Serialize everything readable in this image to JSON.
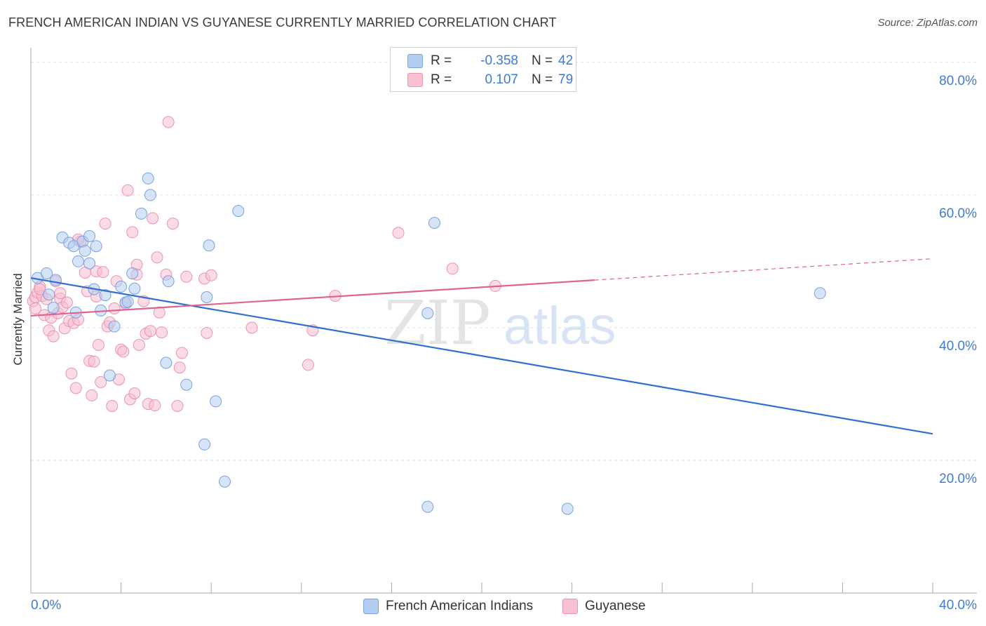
{
  "title": "FRENCH AMERICAN INDIAN VS GUYANESE CURRENTLY MARRIED CORRELATION CHART",
  "source": "Source: ZipAtlas.com",
  "watermark": {
    "zip": "ZIP",
    "atlas": "atlas"
  },
  "legend_top": {
    "rows": [
      {
        "r_label": "R =",
        "r_value": "-0.358",
        "n_label": "N =",
        "n_value": "42"
      },
      {
        "r_label": "R =",
        "r_value": "0.107",
        "n_label": "N =",
        "n_value": "79"
      }
    ]
  },
  "legend_bottom": [
    "French American Indians",
    "Guyanese"
  ],
  "colors": {
    "blue_fill": "#b4cdf2",
    "blue_stroke": "#7aa2de",
    "blue_line": "#2f6fd0",
    "pink_fill": "#f7c0d2",
    "pink_stroke": "#eb93b1",
    "pink_line": "#e0628e",
    "grid": "#dddddd",
    "axis": "#aaaaaa",
    "tick_text": "#3f7ad6"
  },
  "chart_data": {
    "type": "scatter",
    "title": "FRENCH AMERICAN INDIAN VS GUYANESE CURRENTLY MARRIED CORRELATION CHART",
    "xlabel": "",
    "ylabel": "Currently Married",
    "xlim": [
      0,
      40
    ],
    "ylim": [
      0,
      82
    ],
    "x_tick_labels": [
      {
        "value": 0,
        "label": "0.0%"
      },
      {
        "value": 40,
        "label": "40.0%"
      }
    ],
    "y_tick_labels": [
      {
        "value": 20,
        "label": "20.0%"
      },
      {
        "value": 40,
        "label": "40.0%"
      },
      {
        "value": 60,
        "label": "60.0%"
      },
      {
        "value": 80,
        "label": "80.0%"
      }
    ],
    "series": [
      {
        "name": "French American Indians",
        "color": "blue",
        "r": -0.358,
        "n": 42,
        "trend": {
          "x0": 0,
          "y0": 47.5,
          "x1": 40,
          "y1": 24.0,
          "solid_to": 40
        },
        "points": [
          [
            0.3,
            47.5
          ],
          [
            0.7,
            48.2
          ],
          [
            0.8,
            45.0
          ],
          [
            1.0,
            43.0
          ],
          [
            1.1,
            47.2
          ],
          [
            1.4,
            53.6
          ],
          [
            1.7,
            52.8
          ],
          [
            1.9,
            52.3
          ],
          [
            2.0,
            42.3
          ],
          [
            2.1,
            50.0
          ],
          [
            2.3,
            53.0
          ],
          [
            2.4,
            51.6
          ],
          [
            2.6,
            53.8
          ],
          [
            2.8,
            45.8
          ],
          [
            2.9,
            52.3
          ],
          [
            3.1,
            42.6
          ],
          [
            3.3,
            44.9
          ],
          [
            3.5,
            32.8
          ],
          [
            3.7,
            40.2
          ],
          [
            4.0,
            46.2
          ],
          [
            4.2,
            43.8
          ],
          [
            4.5,
            48.2
          ],
          [
            4.6,
            45.9
          ],
          [
            4.9,
            57.2
          ],
          [
            5.2,
            62.5
          ],
          [
            5.3,
            60.0
          ],
          [
            6.0,
            34.7
          ],
          [
            6.1,
            47.0
          ],
          [
            6.9,
            31.4
          ],
          [
            7.7,
            22.4
          ],
          [
            7.8,
            44.6
          ],
          [
            7.9,
            52.4
          ],
          [
            8.2,
            28.9
          ],
          [
            8.6,
            16.8
          ],
          [
            9.2,
            57.6
          ],
          [
            17.6,
            13.0
          ],
          [
            17.9,
            55.8
          ],
          [
            23.8,
            12.7
          ],
          [
            35.0,
            45.2
          ],
          [
            17.6,
            42.2
          ],
          [
            4.3,
            43.9
          ],
          [
            2.6,
            49.7
          ]
        ]
      },
      {
        "name": "Guyanese",
        "color": "pink",
        "r": 0.107,
        "n": 79,
        "trend": {
          "x0": 0,
          "y0": 41.8,
          "x1": 40,
          "y1": 50.4,
          "solid_to": 25
        },
        "points": [
          [
            0.1,
            44.0
          ],
          [
            0.2,
            44.6
          ],
          [
            0.3,
            45.3
          ],
          [
            0.4,
            46.2
          ],
          [
            0.5,
            44.8
          ],
          [
            0.6,
            41.9
          ],
          [
            0.7,
            44.3
          ],
          [
            0.8,
            39.6
          ],
          [
            0.9,
            41.5
          ],
          [
            1.0,
            38.7
          ],
          [
            1.1,
            47.0
          ],
          [
            1.2,
            42.2
          ],
          [
            1.3,
            44.4
          ],
          [
            1.4,
            43.1
          ],
          [
            1.5,
            39.9
          ],
          [
            1.6,
            43.8
          ],
          [
            1.7,
            41.0
          ],
          [
            1.8,
            33.1
          ],
          [
            1.9,
            40.7
          ],
          [
            2.0,
            30.9
          ],
          [
            2.1,
            41.2
          ],
          [
            2.2,
            53.0
          ],
          [
            2.4,
            48.3
          ],
          [
            2.5,
            45.5
          ],
          [
            2.6,
            35.0
          ],
          [
            2.7,
            29.8
          ],
          [
            2.8,
            34.9
          ],
          [
            2.9,
            48.5
          ],
          [
            3.0,
            37.4
          ],
          [
            3.1,
            31.8
          ],
          [
            3.2,
            48.4
          ],
          [
            3.3,
            55.7
          ],
          [
            3.4,
            40.2
          ],
          [
            3.5,
            40.8
          ],
          [
            3.6,
            28.2
          ],
          [
            3.7,
            42.9
          ],
          [
            3.8,
            47.0
          ],
          [
            3.9,
            32.2
          ],
          [
            4.0,
            36.7
          ],
          [
            4.1,
            36.4
          ],
          [
            4.2,
            43.6
          ],
          [
            4.3,
            60.7
          ],
          [
            4.4,
            29.2
          ],
          [
            4.5,
            54.4
          ],
          [
            4.6,
            30.1
          ],
          [
            4.7,
            49.5
          ],
          [
            4.8,
            37.4
          ],
          [
            5.0,
            44.0
          ],
          [
            5.1,
            39.1
          ],
          [
            5.2,
            28.5
          ],
          [
            5.3,
            39.5
          ],
          [
            5.4,
            56.5
          ],
          [
            5.5,
            28.3
          ],
          [
            5.6,
            50.6
          ],
          [
            5.7,
            42.3
          ],
          [
            5.8,
            39.3
          ],
          [
            6.0,
            48.0
          ],
          [
            6.1,
            71.0
          ],
          [
            6.3,
            55.7
          ],
          [
            6.5,
            28.2
          ],
          [
            6.6,
            34.0
          ],
          [
            6.7,
            36.2
          ],
          [
            6.9,
            47.7
          ],
          [
            7.7,
            47.4
          ],
          [
            7.8,
            39.2
          ],
          [
            8.0,
            47.9
          ],
          [
            9.8,
            40.0
          ],
          [
            12.3,
            34.4
          ],
          [
            12.5,
            39.6
          ],
          [
            13.5,
            44.8
          ],
          [
            16.3,
            54.3
          ],
          [
            18.7,
            48.9
          ],
          [
            20.6,
            46.3
          ],
          [
            0.2,
            42.9
          ],
          [
            0.4,
            45.8
          ],
          [
            1.3,
            45.2
          ],
          [
            2.1,
            53.3
          ],
          [
            2.9,
            44.7
          ],
          [
            4.7,
            48.0
          ]
        ]
      }
    ]
  }
}
